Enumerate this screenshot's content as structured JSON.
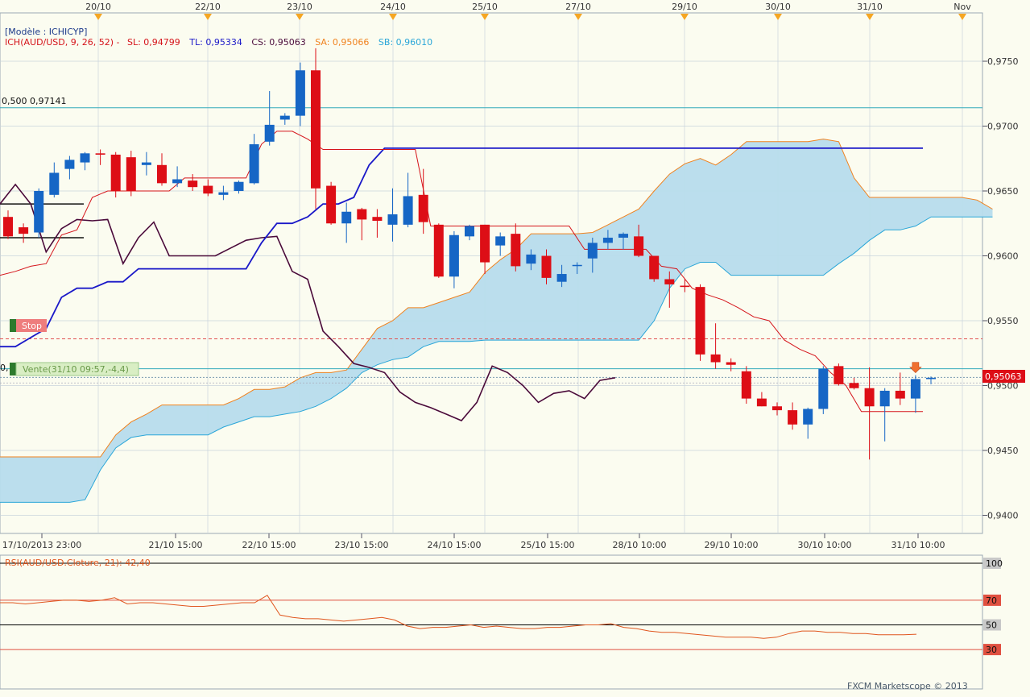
{
  "header": {
    "model_label": "[Modèle : ICHICYP]",
    "ich_label": "ICH(AUD/USD, 9, 26, 52) -",
    "sl_label": "SL: 0,94799",
    "tl_label": "TL: 0,95334",
    "cs_label": "CS: 0,95063",
    "sa_label": "SA: 0,95066",
    "sb_label": "SB: 0,96010"
  },
  "colors": {
    "background": "#fbfcf0",
    "grid": "#c9d4dc",
    "up_candle": "#1666c5",
    "down_candle": "#dd0e16",
    "tenkan": "#d5141a",
    "kijun": "#1a18c8",
    "chikou": "#4a0a3a",
    "span_a": "#f0821e",
    "span_b": "#2aa6d8",
    "cloud_fill": "#b7dcec",
    "rsi_line": "#e0561e",
    "level_line": "#33aabb"
  },
  "top_axis_dates": [
    "20/10",
    "22/10",
    "23/10",
    "24/10",
    "25/10",
    "27/10",
    "29/10",
    "30/10",
    "31/10",
    "Nov"
  ],
  "bottom_axis_dates": [
    "17/10/2013 23:00",
    "21/10 15:00",
    "22/10 15:00",
    "23/10 15:00",
    "24/10 15:00",
    "25/10 15:00",
    "28/10 10:00",
    "29/10 10:00",
    "30/10 10:00",
    "31/10 10:00"
  ],
  "price_axis": [
    "0,9750",
    "0,9700",
    "0,9650",
    "0,9600",
    "0,9550",
    "0,9500",
    "0,9450",
    "0,9400"
  ],
  "current_price_label": "0,95063",
  "fib_label": "0,500 0,97141",
  "stop_label": "Stop",
  "order_label": "Vente(31/10 09:57,-4,4)",
  "order_prefix": "0,",
  "rsi": {
    "label": "RSI(AUD/USD.Cloture, 21): 42,40",
    "levels": [
      "100",
      "70",
      "50",
      "30"
    ]
  },
  "footer": "FXCM Marketscope © 2013",
  "chart_data": [
    {
      "type": "candlestick",
      "title": "ICH(AUD/USD, 9, 26, 52)",
      "ylim": [
        0.9395,
        0.9765
      ],
      "candles": [
        {
          "o": 0.963,
          "h": 0.9635,
          "l": 0.9613,
          "c": 0.9615
        },
        {
          "o": 0.9622,
          "h": 0.9625,
          "l": 0.961,
          "c": 0.9617
        },
        {
          "o": 0.9618,
          "h": 0.9652,
          "l": 0.9614,
          "c": 0.965
        },
        {
          "o": 0.9647,
          "h": 0.9672,
          "l": 0.9645,
          "c": 0.9664
        },
        {
          "o": 0.9667,
          "h": 0.9677,
          "l": 0.9659,
          "c": 0.9674
        },
        {
          "o": 0.9672,
          "h": 0.968,
          "l": 0.9666,
          "c": 0.9679
        },
        {
          "o": 0.9679,
          "h": 0.9682,
          "l": 0.967,
          "c": 0.9678
        },
        {
          "o": 0.9678,
          "h": 0.968,
          "l": 0.9645,
          "c": 0.965
        },
        {
          "o": 0.9676,
          "h": 0.9681,
          "l": 0.9646,
          "c": 0.965
        },
        {
          "o": 0.967,
          "h": 0.968,
          "l": 0.9662,
          "c": 0.9672
        },
        {
          "o": 0.967,
          "h": 0.9679,
          "l": 0.9654,
          "c": 0.9656
        },
        {
          "o": 0.9656,
          "h": 0.9669,
          "l": 0.9653,
          "c": 0.9659
        },
        {
          "o": 0.9658,
          "h": 0.9663,
          "l": 0.965,
          "c": 0.9653
        },
        {
          "o": 0.9654,
          "h": 0.9659,
          "l": 0.9646,
          "c": 0.9648
        },
        {
          "o": 0.9647,
          "h": 0.9654,
          "l": 0.9643,
          "c": 0.9649
        },
        {
          "o": 0.965,
          "h": 0.9658,
          "l": 0.9648,
          "c": 0.9657
        },
        {
          "o": 0.9656,
          "h": 0.9694,
          "l": 0.9655,
          "c": 0.9686
        },
        {
          "o": 0.9688,
          "h": 0.9727,
          "l": 0.9685,
          "c": 0.9701
        },
        {
          "o": 0.9705,
          "h": 0.971,
          "l": 0.9701,
          "c": 0.9708
        },
        {
          "o": 0.9708,
          "h": 0.9749,
          "l": 0.97,
          "c": 0.9743
        },
        {
          "o": 0.9743,
          "h": 0.976,
          "l": 0.9636,
          "c": 0.9652
        },
        {
          "o": 0.9654,
          "h": 0.9657,
          "l": 0.9624,
          "c": 0.9625
        },
        {
          "o": 0.9625,
          "h": 0.9641,
          "l": 0.961,
          "c": 0.9634
        },
        {
          "o": 0.9636,
          "h": 0.9637,
          "l": 0.9612,
          "c": 0.9628
        },
        {
          "o": 0.963,
          "h": 0.9636,
          "l": 0.9614,
          "c": 0.9627
        },
        {
          "o": 0.9624,
          "h": 0.9652,
          "l": 0.9611,
          "c": 0.9632
        },
        {
          "o": 0.9624,
          "h": 0.9664,
          "l": 0.9622,
          "c": 0.9646
        },
        {
          "o": 0.9647,
          "h": 0.9667,
          "l": 0.9617,
          "c": 0.9626
        },
        {
          "o": 0.9624,
          "h": 0.9625,
          "l": 0.9583,
          "c": 0.9584
        },
        {
          "o": 0.9584,
          "h": 0.9619,
          "l": 0.9575,
          "c": 0.9616
        },
        {
          "o": 0.9615,
          "h": 0.9624,
          "l": 0.9612,
          "c": 0.9623
        },
        {
          "o": 0.9624,
          "h": 0.9624,
          "l": 0.9586,
          "c": 0.9595
        },
        {
          "o": 0.9608,
          "h": 0.9618,
          "l": 0.96,
          "c": 0.9615
        },
        {
          "o": 0.9617,
          "h": 0.9625,
          "l": 0.9588,
          "c": 0.9592
        },
        {
          "o": 0.9594,
          "h": 0.9605,
          "l": 0.9589,
          "c": 0.9601
        },
        {
          "o": 0.96,
          "h": 0.9605,
          "l": 0.9578,
          "c": 0.9583
        },
        {
          "o": 0.958,
          "h": 0.9593,
          "l": 0.9576,
          "c": 0.9586
        },
        {
          "o": 0.9593,
          "h": 0.9595,
          "l": 0.9586,
          "c": 0.9593
        },
        {
          "o": 0.9598,
          "h": 0.9614,
          "l": 0.9587,
          "c": 0.961
        },
        {
          "o": 0.961,
          "h": 0.962,
          "l": 0.9605,
          "c": 0.9614
        },
        {
          "o": 0.9614,
          "h": 0.9618,
          "l": 0.9605,
          "c": 0.9617
        },
        {
          "o": 0.9615,
          "h": 0.9624,
          "l": 0.9599,
          "c": 0.96
        },
        {
          "o": 0.96,
          "h": 0.96,
          "l": 0.958,
          "c": 0.9582
        },
        {
          "o": 0.9582,
          "h": 0.9588,
          "l": 0.956,
          "c": 0.9578
        },
        {
          "o": 0.9577,
          "h": 0.9582,
          "l": 0.9572,
          "c": 0.9576
        },
        {
          "o": 0.9576,
          "h": 0.9578,
          "l": 0.9519,
          "c": 0.9524
        },
        {
          "o": 0.9524,
          "h": 0.9548,
          "l": 0.9513,
          "c": 0.9518
        },
        {
          "o": 0.9518,
          "h": 0.9521,
          "l": 0.9511,
          "c": 0.9516
        },
        {
          "o": 0.9511,
          "h": 0.9515,
          "l": 0.9486,
          "c": 0.949
        },
        {
          "o": 0.949,
          "h": 0.9495,
          "l": 0.9484,
          "c": 0.9484
        },
        {
          "o": 0.9484,
          "h": 0.9487,
          "l": 0.9477,
          "c": 0.9481
        },
        {
          "o": 0.9481,
          "h": 0.9487,
          "l": 0.9466,
          "c": 0.947
        },
        {
          "o": 0.947,
          "h": 0.9483,
          "l": 0.9459,
          "c": 0.9482
        },
        {
          "o": 0.9482,
          "h": 0.9515,
          "l": 0.9478,
          "c": 0.9513
        },
        {
          "o": 0.9515,
          "h": 0.9517,
          "l": 0.95,
          "c": 0.9501
        },
        {
          "o": 0.9502,
          "h": 0.9506,
          "l": 0.9497,
          "c": 0.9498
        },
        {
          "o": 0.9498,
          "h": 0.9514,
          "l": 0.9443,
          "c": 0.9484
        },
        {
          "o": 0.9484,
          "h": 0.9498,
          "l": 0.9457,
          "c": 0.9496
        },
        {
          "o": 0.9496,
          "h": 0.951,
          "l": 0.9485,
          "c": 0.949
        },
        {
          "o": 0.949,
          "h": 0.9508,
          "l": 0.9479,
          "c": 0.9505
        },
        {
          "o": 0.9505,
          "h": 0.9507,
          "l": 0.9501,
          "c": 0.9506
        }
      ],
      "tenkan_sen": [
        0.9585,
        0.9588,
        0.9592,
        0.9594,
        0.9616,
        0.962,
        0.9645,
        0.965,
        0.965,
        0.965,
        0.965,
        0.965,
        0.966,
        0.966,
        0.966,
        0.966,
        0.966,
        0.9686,
        0.9696,
        0.9696,
        0.969,
        0.9682,
        0.9682,
        0.9682,
        0.9682,
        0.9682,
        0.9682,
        0.9682,
        0.9623,
        0.9623,
        0.9623,
        0.9623,
        0.9623,
        0.9623,
        0.9623,
        0.9623,
        0.9623,
        0.9623,
        0.9605,
        0.9605,
        0.9605,
        0.9605,
        0.9605,
        0.9592,
        0.959,
        0.9575,
        0.957,
        0.9566,
        0.956,
        0.9553,
        0.955,
        0.9535,
        0.9528,
        0.9523,
        0.951,
        0.95,
        0.948,
        0.948,
        0.948,
        0.948,
        0.948
      ],
      "kijun_sen": [
        0.953,
        0.953,
        0.9537,
        0.9544,
        0.9568,
        0.9575,
        0.9575,
        0.958,
        0.958,
        0.959,
        0.959,
        0.959,
        0.959,
        0.959,
        0.959,
        0.959,
        0.959,
        0.961,
        0.9625,
        0.9625,
        0.963,
        0.964,
        0.964,
        0.9645,
        0.967,
        0.9683,
        0.9683,
        0.9683,
        0.9683,
        0.9683,
        0.9683,
        0.9683,
        0.9683,
        0.9683,
        0.9683,
        0.9683,
        0.9683,
        0.9683,
        0.9683,
        0.9683,
        0.9683,
        0.9683,
        0.9683,
        0.9683,
        0.9683,
        0.9683,
        0.9683,
        0.9683,
        0.9683,
        0.9683,
        0.9683,
        0.9683,
        0.9683,
        0.9683,
        0.9683,
        0.9683,
        0.9683,
        0.9683,
        0.9683,
        0.9683,
        0.9683
      ],
      "chikou_span": [
        0.964,
        0.9655,
        0.964,
        0.9603,
        0.9621,
        0.9628,
        0.9627,
        0.9628,
        0.9594,
        0.9614,
        0.9626,
        0.96,
        0.96,
        0.96,
        0.96,
        0.9606,
        0.9612,
        0.9614,
        0.9615,
        0.9588,
        0.9582,
        0.9542,
        0.953,
        0.9517,
        0.9514,
        0.951,
        0.9495,
        0.9487,
        0.9483,
        0.9478,
        0.9473,
        0.9487,
        0.9515,
        0.951,
        0.95,
        0.9487,
        0.9494,
        0.9496,
        0.949,
        0.9504,
        0.9506
      ],
      "senkou_span_a": [
        0.9445,
        0.9445,
        0.9445,
        0.9445,
        0.9445,
        0.9445,
        0.9445,
        0.9445,
        0.9462,
        0.9472,
        0.9478,
        0.9485,
        0.9485,
        0.9485,
        0.9485,
        0.9485,
        0.949,
        0.9497,
        0.9497,
        0.9499,
        0.9506,
        0.951,
        0.951,
        0.9512,
        0.9528,
        0.9544,
        0.955,
        0.956,
        0.956,
        0.9564,
        0.9568,
        0.9572,
        0.9587,
        0.9597,
        0.9605,
        0.9617,
        0.9617,
        0.9617,
        0.9617,
        0.9618,
        0.9624,
        0.963,
        0.9636,
        0.965,
        0.9663,
        0.9671,
        0.9675,
        0.967,
        0.9678,
        0.9688,
        0.9688,
        0.9688,
        0.9688,
        0.9688,
        0.969,
        0.9688,
        0.966,
        0.9645,
        0.9645,
        0.9645,
        0.9645,
        0.9645,
        0.9645,
        0.9645,
        0.9643,
        0.9636
      ],
      "senkou_span_b": [
        0.941,
        0.941,
        0.941,
        0.941,
        0.941,
        0.941,
        0.9412,
        0.9435,
        0.9452,
        0.946,
        0.9462,
        0.9462,
        0.9462,
        0.9462,
        0.9462,
        0.9468,
        0.9472,
        0.9476,
        0.9476,
        0.9478,
        0.948,
        0.9484,
        0.949,
        0.9498,
        0.951,
        0.9516,
        0.952,
        0.9522,
        0.953,
        0.9534,
        0.9534,
        0.9534,
        0.9535,
        0.9535,
        0.9535,
        0.9535,
        0.9535,
        0.9535,
        0.9535,
        0.9535,
        0.9535,
        0.9535,
        0.9535,
        0.955,
        0.9575,
        0.959,
        0.9595,
        0.9595,
        0.9585,
        0.9585,
        0.9585,
        0.9585,
        0.9585,
        0.9585,
        0.9585,
        0.9594,
        0.9602,
        0.9612,
        0.962,
        0.962,
        0.9623,
        0.963,
        0.963,
        0.963,
        0.963,
        0.963
      ],
      "levels": {
        "fib_500": 0.97141,
        "stop": 0.9536,
        "order": 0.9506,
        "current": 0.95063,
        "order_high": 0.9513
      },
      "sell_arrow_candle": 59
    },
    {
      "type": "line",
      "title": "RSI(AUD/USD.Cloture, 21)",
      "ylim": [
        0,
        100
      ],
      "reference_levels": [
        100,
        70,
        50,
        30
      ],
      "values": [
        68,
        68,
        67,
        68,
        69,
        70,
        70,
        69,
        70,
        72,
        67,
        68,
        68,
        67,
        66,
        65,
        65,
        66,
        67,
        68,
        68,
        74,
        58,
        56,
        55,
        55,
        54,
        53,
        54,
        55,
        56,
        54,
        49,
        47,
        48,
        48,
        49,
        50,
        48,
        49,
        48,
        47,
        47,
        48,
        48,
        49,
        50,
        50,
        51,
        48,
        47,
        45,
        44,
        44,
        43,
        42,
        41,
        40,
        40,
        40,
        39,
        40,
        43,
        45,
        45,
        44,
        44,
        43,
        43,
        42,
        42,
        42,
        42.4
      ]
    }
  ]
}
